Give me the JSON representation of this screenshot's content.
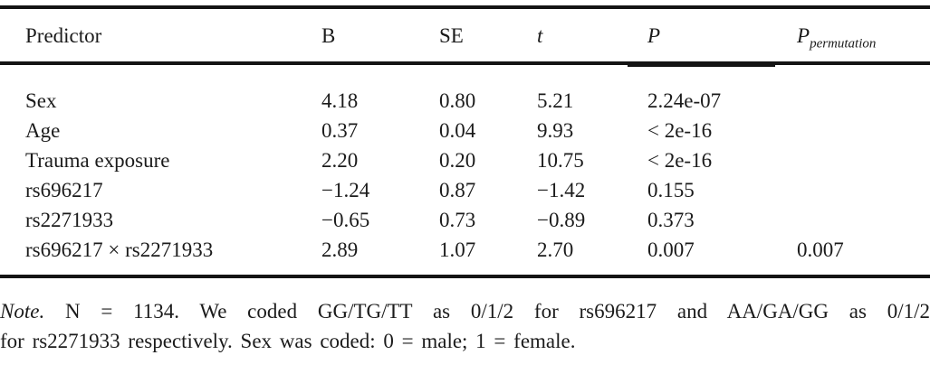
{
  "table": {
    "columns": [
      {
        "key": "predictor",
        "label": "Predictor"
      },
      {
        "key": "b",
        "label": "B"
      },
      {
        "key": "se",
        "label": "SE"
      },
      {
        "key": "t",
        "label": "t"
      },
      {
        "key": "p",
        "label": "P"
      },
      {
        "key": "p-permutation",
        "label": "P",
        "sub": "permutation"
      }
    ],
    "rows": [
      [
        "Sex",
        "4.18",
        "0.80",
        "5.21",
        "2.24e-07",
        ""
      ],
      [
        "Age",
        "0.37",
        "0.04",
        "9.93",
        "< 2e-16",
        ""
      ],
      [
        "Trauma exposure",
        "2.20",
        "0.20",
        "10.75",
        "< 2e-16",
        ""
      ],
      [
        "rs696217",
        "−1.24",
        "0.87",
        "−1.42",
        "0.155",
        ""
      ],
      [
        "rs2271933",
        "−0.65",
        "0.73",
        "−0.89",
        "0.373",
        ""
      ],
      [
        "rs696217 × rs2271933",
        "2.89",
        "1.07",
        "2.70",
        "0.007",
        "0.007"
      ]
    ]
  },
  "note": {
    "label": "Note.",
    "line1": "N = 1134. We coded GG/TG/TT as 0/1/2 for rs696217 and AA/GA/GG as 0/1/2",
    "line2": "for rs2271933 respectively. Sex was coded: 0 = male; 1 = female."
  },
  "colors": {
    "text": "#1b1b1b",
    "rule": "#141414",
    "background": "#ffffff"
  }
}
